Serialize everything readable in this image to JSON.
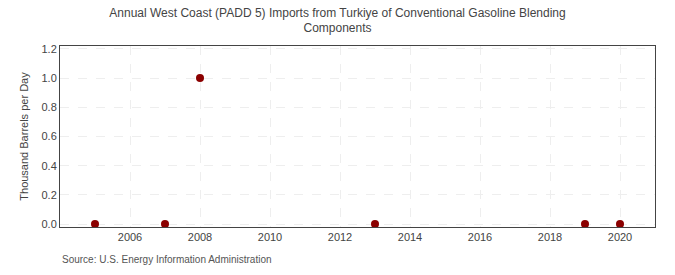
{
  "chart_data": {
    "type": "scatter",
    "title": "Annual West Coast (PADD 5) Imports from Turkiye of Conventional Gasoline Blending\nComponents",
    "ylabel": "Thousand Barrels per Day",
    "annotations": [
      "Source: U.S. Energy Information Administration"
    ],
    "x": [
      2005,
      2007,
      2008,
      2013,
      2019,
      2020
    ],
    "values": [
      0.0,
      0.0,
      1.0,
      0.0,
      0.0,
      0.0
    ],
    "color": "#8b0000",
    "marker": "circle",
    "xlim": [
      2004,
      2021
    ],
    "xticks": [
      2006,
      2008,
      2010,
      2012,
      2014,
      2016,
      2018,
      2020
    ],
    "ylim": [
      -0.02,
      1.22
    ],
    "yticks": [
      {
        "value": 0.0,
        "label": "0.0"
      },
      0.2,
      0.4,
      0.6,
      0.8,
      {
        "value": 1.0,
        "label": "1.0"
      },
      1.2
    ],
    "grid": true
  }
}
